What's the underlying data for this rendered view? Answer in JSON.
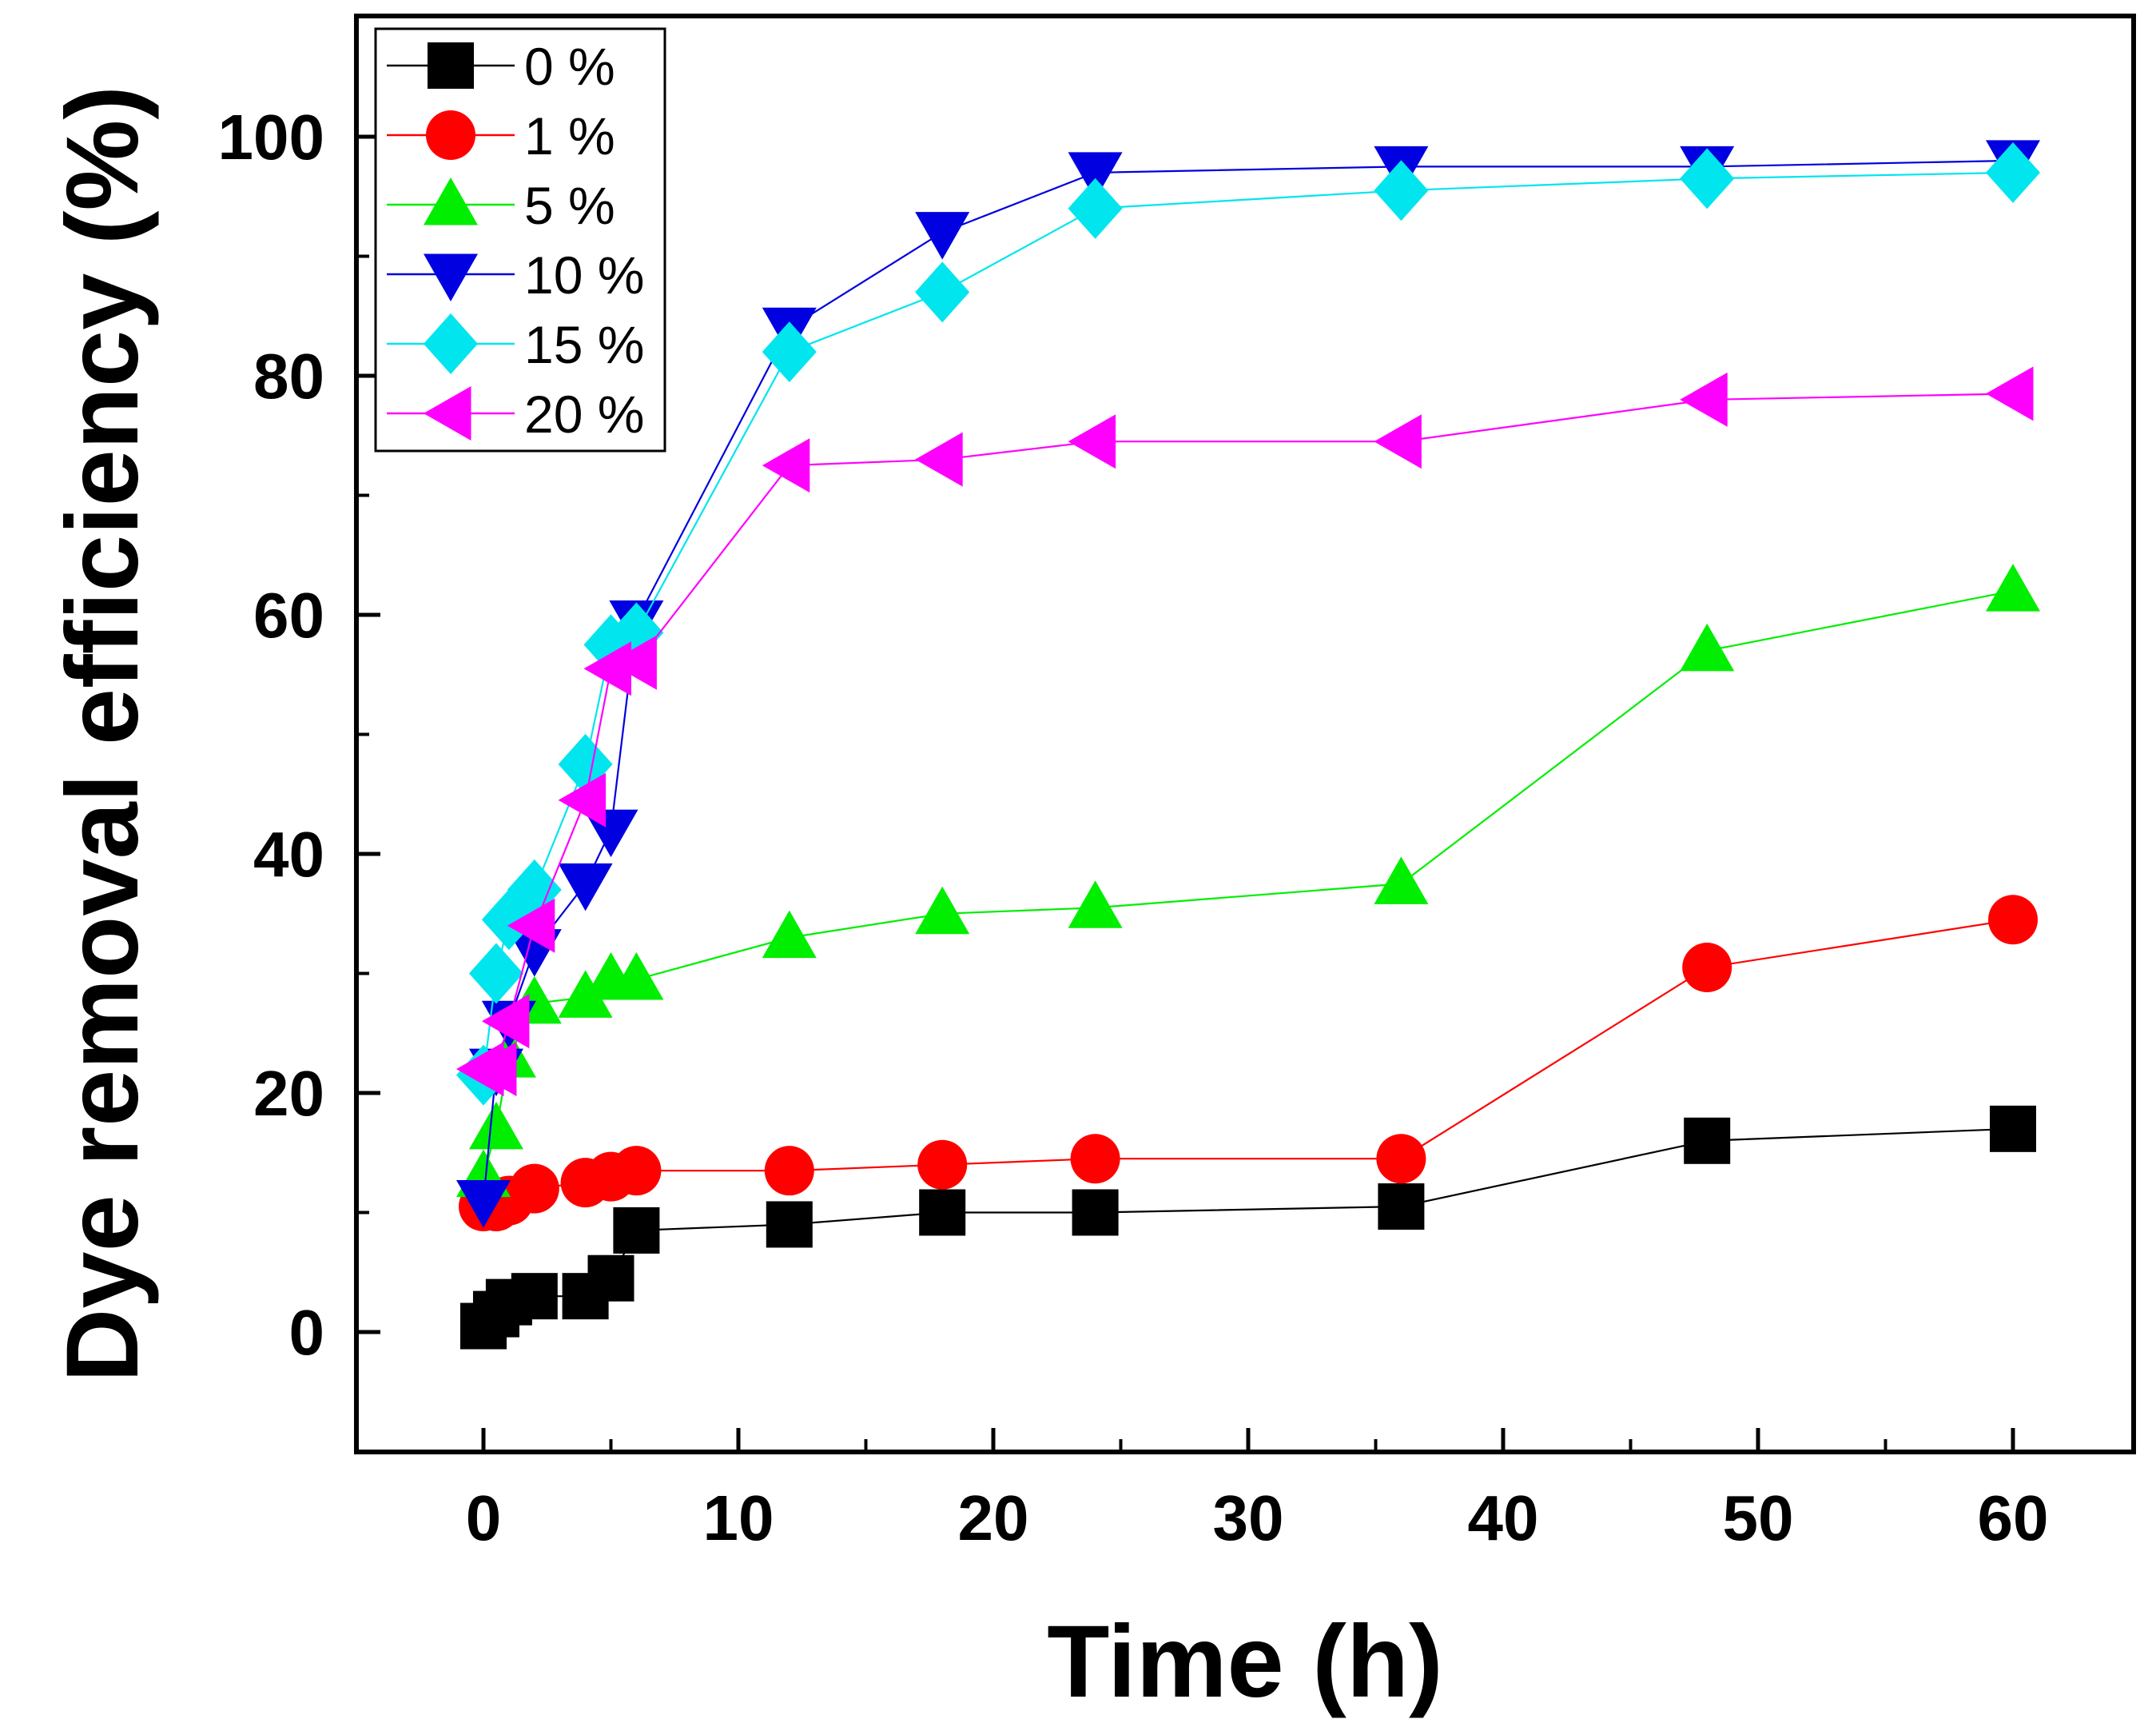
{
  "chart_data": {
    "type": "line",
    "title": "",
    "xlabel": "Time (h)",
    "ylabel": "Dye removal efficiency (%)",
    "xlim": [
      -5,
      65
    ],
    "ylim": [
      -10,
      110
    ],
    "xticks": [
      0,
      10,
      20,
      30,
      40,
      50,
      60
    ],
    "yticks": [
      0,
      20,
      40,
      60,
      80,
      100
    ],
    "grid": false,
    "legend_position": "top-left",
    "x": [
      0,
      0.5,
      1,
      2,
      4,
      5,
      6,
      12,
      18,
      24,
      36,
      48,
      60
    ],
    "series": [
      {
        "name": "0 %",
        "marker": "square",
        "color": "#000000",
        "values": [
          0.5,
          1.5,
          2.5,
          3,
          3,
          4.5,
          8.5,
          9,
          10,
          10,
          10.5,
          16,
          17
        ]
      },
      {
        "name": "1 %",
        "marker": "circle",
        "color": "#ff0000",
        "values": [
          10.5,
          10.5,
          11,
          12,
          12.5,
          13,
          13.5,
          13.5,
          14,
          14.5,
          14.5,
          30.5,
          34.5
        ]
      },
      {
        "name": "5 %",
        "marker": "triangle-up",
        "color": "#00ee00",
        "values": [
          13,
          17,
          23,
          27.5,
          28,
          29.5,
          29.5,
          33,
          35,
          35.5,
          37.5,
          57,
          62
        ]
      },
      {
        "name": "10 %",
        "marker": "triangle-down",
        "color": "#0000e0",
        "values": [
          11,
          22,
          26,
          32,
          37.5,
          42,
          59.5,
          84,
          92,
          97,
          97.5,
          97.5,
          98
        ]
      },
      {
        "name": "15 %",
        "marker": "diamond",
        "color": "#00e5ee",
        "values": [
          21.5,
          30,
          34.5,
          37,
          47.5,
          57.5,
          58.5,
          82,
          87,
          94,
          95.5,
          96.5,
          97
        ]
      },
      {
        "name": "20 %",
        "marker": "triangle-left",
        "color": "#ff00ff",
        "values": [
          22,
          22,
          26,
          34,
          44.5,
          55.5,
          56,
          72.5,
          73,
          74.5,
          74.5,
          78,
          78.5
        ]
      }
    ]
  }
}
